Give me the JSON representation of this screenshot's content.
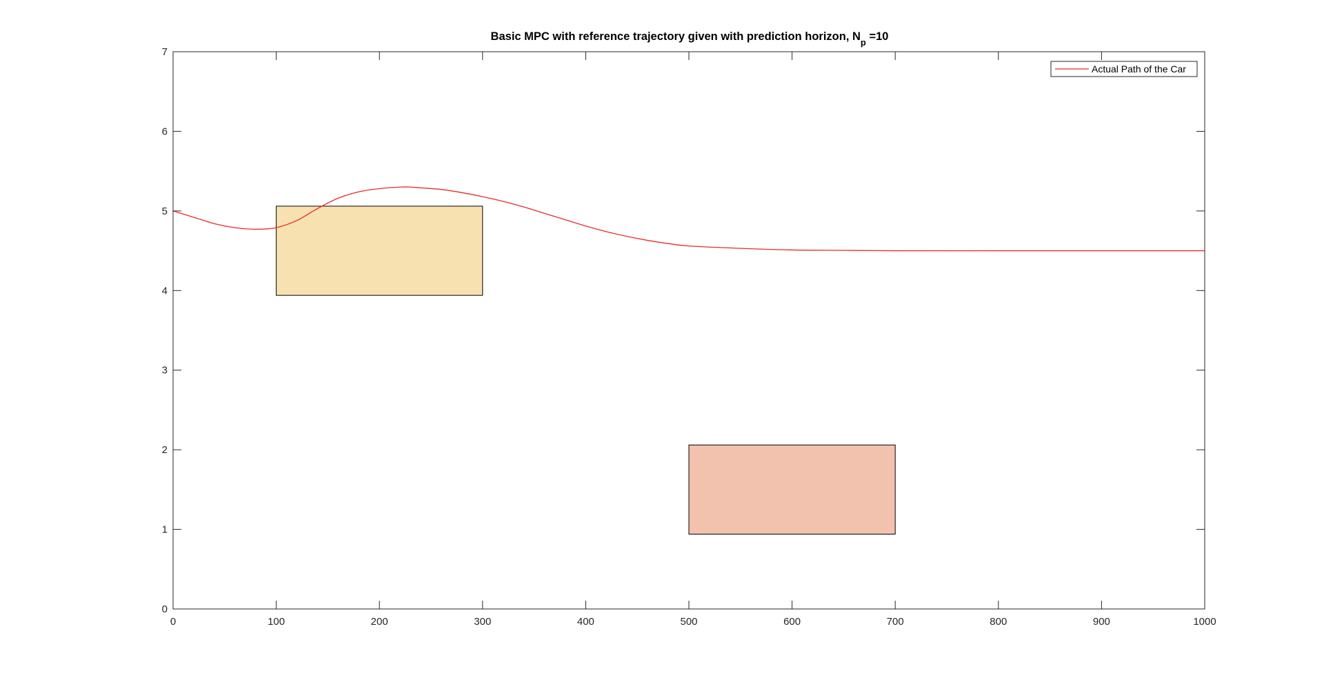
{
  "chart_data": {
    "type": "line",
    "title": {
      "main": "Basic MPC with reference trajectory given with prediction horizon, N",
      "subscript": "p",
      "suffix": " =10"
    },
    "xlim": [
      0,
      1000
    ],
    "ylim": [
      0,
      7
    ],
    "x_ticks": [
      "0",
      "100",
      "200",
      "300",
      "400",
      "500",
      "600",
      "700",
      "800",
      "900",
      "1000"
    ],
    "y_ticks": [
      "0",
      "1",
      "2",
      "3",
      "4",
      "5",
      "6",
      "7"
    ],
    "grid": false,
    "legend_position": "top-right",
    "series": [
      {
        "name": "Actual Path of the Car",
        "color": "#e8292b",
        "x": [
          0,
          20,
          40,
          60,
          80,
          100,
          120,
          140,
          160,
          180,
          200,
          220,
          230,
          240,
          260,
          280,
          300,
          320,
          340,
          360,
          380,
          400,
          420,
          440,
          460,
          480,
          500,
          550,
          600,
          650,
          700,
          800,
          900,
          1000
        ],
        "y": [
          5.0,
          4.92,
          4.84,
          4.79,
          4.77,
          4.79,
          4.88,
          5.03,
          5.16,
          5.24,
          5.28,
          5.3,
          5.3,
          5.29,
          5.27,
          5.23,
          5.18,
          5.12,
          5.05,
          4.97,
          4.89,
          4.81,
          4.74,
          4.68,
          4.63,
          4.59,
          4.56,
          4.53,
          4.51,
          4.505,
          4.5,
          4.5,
          4.5,
          4.5
        ]
      }
    ],
    "obstacles": [
      {
        "x": [
          100,
          300
        ],
        "y": [
          3.94,
          5.06
        ],
        "fill": "#f8e1b0"
      },
      {
        "x": [
          500,
          700
        ],
        "y": [
          0.94,
          2.06
        ],
        "fill": "#f2c2ae"
      }
    ]
  }
}
